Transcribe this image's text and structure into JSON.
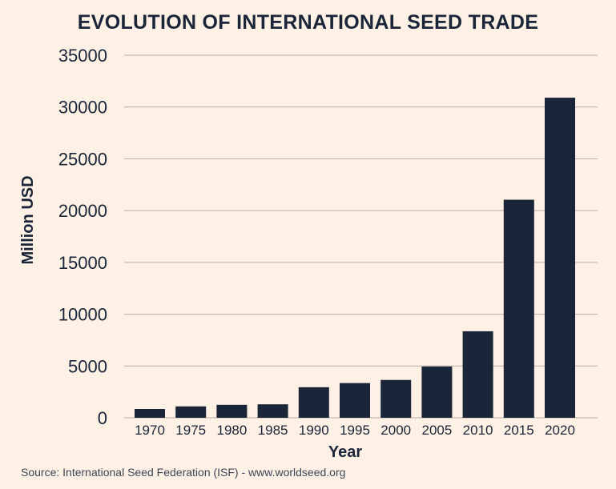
{
  "chart_data": {
    "type": "bar",
    "title": "EVOLUTION OF INTERNATIONAL SEED TRADE",
    "xlabel": "Year",
    "ylabel": "Million USD",
    "categories": [
      "1970",
      "1975",
      "1980",
      "1985",
      "1990",
      "1995",
      "2000",
      "2005",
      "2010",
      "2015",
      "2020"
    ],
    "values": [
      850,
      1100,
      1250,
      1300,
      2950,
      3350,
      3650,
      4950,
      8350,
      21050,
      30900
    ],
    "ylim": [
      0,
      35000
    ],
    "yticks": [
      "0",
      "5000",
      "10000",
      "15000",
      "20000",
      "25000",
      "30000",
      "35000"
    ],
    "grid": true,
    "bar_color": "#1a2539",
    "grid_color": "#b8aea4",
    "background": "#fdf0e4"
  },
  "footer": {
    "source": "Source: International Seed Federation (ISF) - www.worldseed.org"
  }
}
